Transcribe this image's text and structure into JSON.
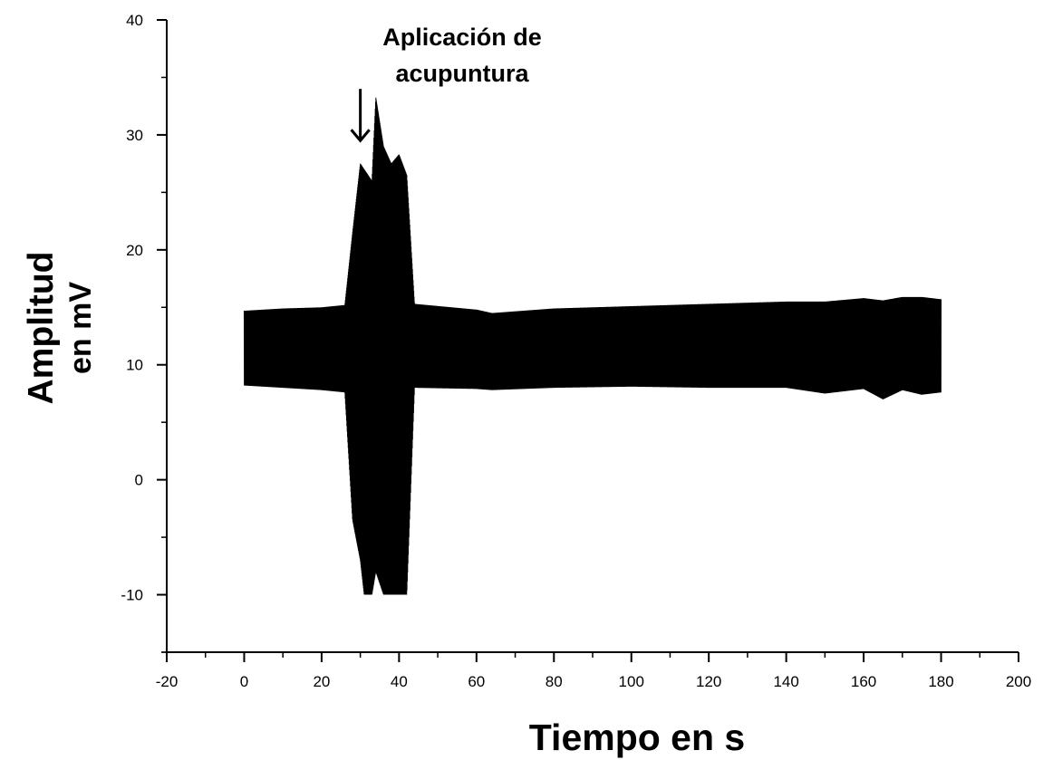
{
  "chart_data": {
    "type": "line",
    "title": "",
    "xlabel": "Tiempo en s",
    "ylabel_line1": "Amplitud",
    "ylabel_line2": "en mV",
    "xlim": [
      -20,
      200
    ],
    "ylim": [
      -15,
      40
    ],
    "xticks": [
      -20,
      0,
      20,
      40,
      60,
      80,
      100,
      120,
      140,
      160,
      180,
      200
    ],
    "yticks": [
      -10,
      0,
      10,
      20,
      30,
      40
    ],
    "grid": false,
    "legend": "none",
    "annotation": {
      "line1": "Aplicación de",
      "line2": "acupuntura",
      "arrow_x": 30,
      "arrow_y_top": 34,
      "arrow_y_bottom": 29.5
    },
    "series": [
      {
        "color": "#000000",
        "x_start": 0,
        "x_end": 180,
        "baseline": 11.5,
        "envelope": [
          {
            "x": 0,
            "ymin": 8.2,
            "ymax": 14.7
          },
          {
            "x": 10,
            "ymin": 8.0,
            "ymax": 14.9
          },
          {
            "x": 20,
            "ymin": 7.8,
            "ymax": 15.0
          },
          {
            "x": 26,
            "ymin": 7.6,
            "ymax": 15.2
          },
          {
            "x": 28,
            "ymin": -3.5,
            "ymax": 21.5
          },
          {
            "x": 30,
            "ymin": -7.0,
            "ymax": 27.5
          },
          {
            "x": 31,
            "ymin": -10,
            "ymax": 27.0
          },
          {
            "x": 33,
            "ymin": -10,
            "ymax": 26.0
          },
          {
            "x": 34,
            "ymin": -8.0,
            "ymax": 33.3
          },
          {
            "x": 36,
            "ymin": -10,
            "ymax": 29.0
          },
          {
            "x": 38,
            "ymin": -10,
            "ymax": 27.5
          },
          {
            "x": 40,
            "ymin": -10,
            "ymax": 28.3
          },
          {
            "x": 42,
            "ymin": -10,
            "ymax": 26.5
          },
          {
            "x": 44,
            "ymin": 8.0,
            "ymax": 15.3
          },
          {
            "x": 60,
            "ymin": 7.9,
            "ymax": 14.8
          },
          {
            "x": 64,
            "ymin": 7.8,
            "ymax": 14.5
          },
          {
            "x": 80,
            "ymin": 8.0,
            "ymax": 14.9
          },
          {
            "x": 100,
            "ymin": 8.1,
            "ymax": 15.1
          },
          {
            "x": 120,
            "ymin": 8.0,
            "ymax": 15.3
          },
          {
            "x": 140,
            "ymin": 8.0,
            "ymax": 15.5
          },
          {
            "x": 150,
            "ymin": 7.5,
            "ymax": 15.5
          },
          {
            "x": 160,
            "ymin": 7.9,
            "ymax": 15.8
          },
          {
            "x": 165,
            "ymin": 7.0,
            "ymax": 15.6
          },
          {
            "x": 170,
            "ymin": 7.8,
            "ymax": 15.9
          },
          {
            "x": 175,
            "ymin": 7.4,
            "ymax": 15.9
          },
          {
            "x": 180,
            "ymin": 7.6,
            "ymax": 15.7
          }
        ]
      }
    ]
  }
}
